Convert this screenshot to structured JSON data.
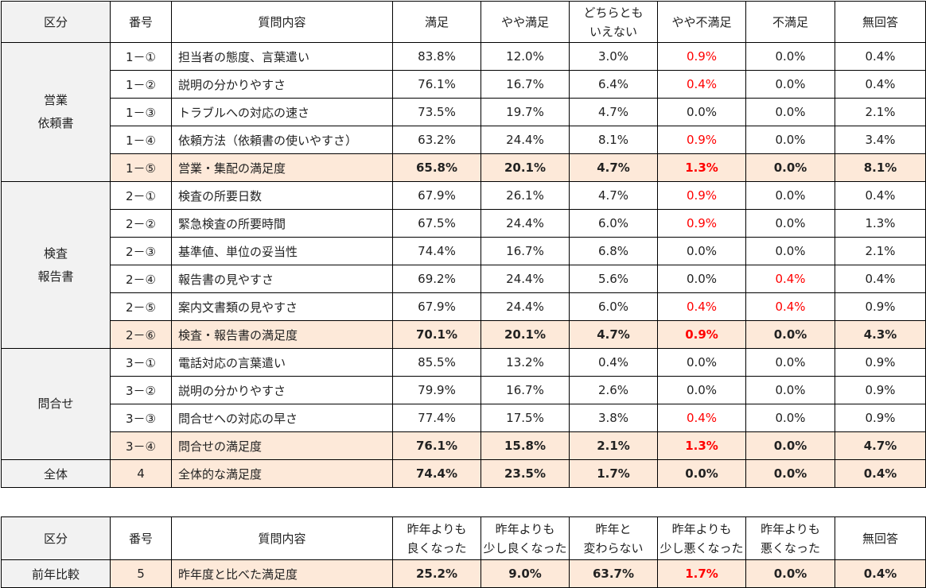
{
  "main_table": {
    "headers": {
      "kubun": "区分",
      "num": "番号",
      "question": "質問内容",
      "cols": [
        "満足",
        "やや満足",
        "どちらとも\nいえない",
        "やや不満足",
        "不満足",
        "無回答"
      ]
    },
    "groups": [
      {
        "label": "営業\n依頼書",
        "rows": [
          {
            "num": "1－①",
            "q": "担当者の態度、言葉遣い",
            "v": [
              "83.8%",
              "12.0%",
              "3.0%",
              "0.9%",
              "0.0%",
              "0.4%"
            ],
            "red": [
              3
            ],
            "sum": false
          },
          {
            "num": "1－②",
            "q": "説明の分かりやすさ",
            "v": [
              "76.1%",
              "16.7%",
              "6.4%",
              "0.4%",
              "0.0%",
              "0.4%"
            ],
            "red": [
              3
            ],
            "sum": false
          },
          {
            "num": "1－③",
            "q": "トラブルへの対応の速さ",
            "v": [
              "73.5%",
              "19.7%",
              "4.7%",
              "0.0%",
              "0.0%",
              "2.1%"
            ],
            "red": [],
            "sum": false
          },
          {
            "num": "1－④",
            "q": "依頼方法（依頼書の使いやすさ）",
            "v": [
              "63.2%",
              "24.4%",
              "8.1%",
              "0.9%",
              "0.0%",
              "3.4%"
            ],
            "red": [
              3
            ],
            "sum": false
          },
          {
            "num": "1－⑤",
            "q": "営業・集配の満足度",
            "v": [
              "65.8%",
              "20.1%",
              "4.7%",
              "1.3%",
              "0.0%",
              "8.1%"
            ],
            "red": [
              3
            ],
            "sum": true
          }
        ]
      },
      {
        "label": "検査\n報告書",
        "rows": [
          {
            "num": "2－①",
            "q": "検査の所要日数",
            "v": [
              "67.9%",
              "26.1%",
              "4.7%",
              "0.9%",
              "0.0%",
              "0.4%"
            ],
            "red": [
              3
            ],
            "sum": false
          },
          {
            "num": "2－②",
            "q": "緊急検査の所要時間",
            "v": [
              "67.5%",
              "24.4%",
              "6.0%",
              "0.9%",
              "0.0%",
              "1.3%"
            ],
            "red": [
              3
            ],
            "sum": false
          },
          {
            "num": "2－③",
            "q": "基準値、単位の妥当性",
            "v": [
              "74.4%",
              "16.7%",
              "6.8%",
              "0.0%",
              "0.0%",
              "2.1%"
            ],
            "red": [],
            "sum": false
          },
          {
            "num": "2－④",
            "q": "報告書の見やすさ",
            "v": [
              "69.2%",
              "24.4%",
              "5.6%",
              "0.0%",
              "0.4%",
              "0.4%"
            ],
            "red": [
              4
            ],
            "sum": false
          },
          {
            "num": "2－⑤",
            "q": "案内文書類の見やすさ",
            "v": [
              "67.9%",
              "24.4%",
              "6.0%",
              "0.4%",
              "0.4%",
              "0.9%"
            ],
            "red": [
              3,
              4
            ],
            "sum": false
          },
          {
            "num": "2－⑥",
            "q": "検査・報告書の満足度",
            "v": [
              "70.1%",
              "20.1%",
              "4.7%",
              "0.9%",
              "0.0%",
              "4.3%"
            ],
            "red": [
              3
            ],
            "sum": true
          }
        ]
      },
      {
        "label": "問合せ",
        "rows": [
          {
            "num": "3－①",
            "q": "電話対応の言葉遣い",
            "v": [
              "85.5%",
              "13.2%",
              "0.4%",
              "0.0%",
              "0.0%",
              "0.9%"
            ],
            "red": [],
            "sum": false
          },
          {
            "num": "3－②",
            "q": "説明の分かりやすさ",
            "v": [
              "79.9%",
              "16.7%",
              "2.6%",
              "0.0%",
              "0.0%",
              "0.9%"
            ],
            "red": [],
            "sum": false
          },
          {
            "num": "3－③",
            "q": "問合せへの対応の早さ",
            "v": [
              "77.4%",
              "17.5%",
              "3.8%",
              "0.4%",
              "0.0%",
              "0.9%"
            ],
            "red": [
              3
            ],
            "sum": false
          },
          {
            "num": "3－④",
            "q": "問合せの満足度",
            "v": [
              "76.1%",
              "15.8%",
              "2.1%",
              "1.3%",
              "0.0%",
              "4.7%"
            ],
            "red": [
              3
            ],
            "sum": true
          }
        ]
      }
    ],
    "total": {
      "label": "全体",
      "num": "4",
      "q": "全体的な満足度",
      "v": [
        "74.4%",
        "23.5%",
        "1.7%",
        "0.0%",
        "0.0%",
        "0.4%"
      ],
      "red": []
    }
  },
  "compare_table": {
    "headers": {
      "kubun": "区分",
      "num": "番号",
      "question": "質問内容",
      "cols": [
        "昨年よりも\n良くなった",
        "昨年よりも\n少し良くなった",
        "昨年と\n変わらない",
        "昨年よりも\n少し悪くなった",
        "昨年よりも\n悪くなった",
        "無回答"
      ]
    },
    "row": {
      "label": "前年比較",
      "num": "5",
      "q": "昨年度と比べた満足度",
      "v": [
        "25.2%",
        "9.0%",
        "63.7%",
        "1.7%",
        "0.0%",
        "0.4%"
      ],
      "red": [
        3
      ]
    }
  },
  "colors": {
    "red": "#ff0000",
    "highlight": "#fde9d9",
    "gray": "#f2f2f2"
  }
}
